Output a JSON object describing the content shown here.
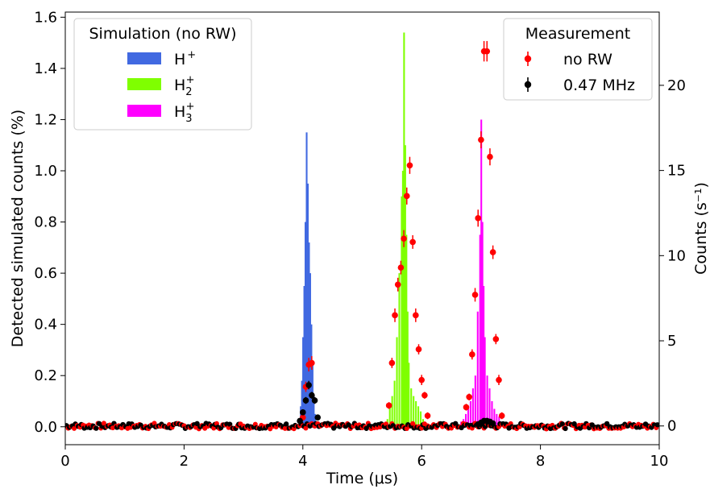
{
  "chart_data": {
    "type": "bar",
    "xlabel": "Time (μs)",
    "ylabel_left": "Detected simulated counts (%)",
    "ylabel_right": "Counts (s⁻¹)",
    "xlim": [
      0,
      10
    ],
    "ylim_left": [
      -0.07,
      1.62
    ],
    "ylim_right": [
      -1.1,
      24.3
    ],
    "x_ticks": [
      0,
      2,
      4,
      6,
      8,
      10
    ],
    "y_left_ticks": [
      0.0,
      0.2,
      0.4,
      0.6,
      0.8,
      1.0,
      1.2,
      1.4,
      1.6
    ],
    "y_right_ticks": [
      0,
      5,
      10,
      15,
      20
    ],
    "grid": false,
    "legends": [
      {
        "title": "Simulation (no RW)",
        "placement": "top-left",
        "entries": [
          {
            "label": "H",
            "sup": "+",
            "sub": "",
            "color": "#4169e1"
          },
          {
            "label": "H",
            "sup": "+",
            "sub": "2",
            "color": "#7fff00"
          },
          {
            "label": "H",
            "sup": "+",
            "sub": "3",
            "color": "#ff00ff"
          }
        ]
      },
      {
        "title": "Measurement",
        "placement": "top-right",
        "entries": [
          {
            "label": "no RW",
            "color": "#ff0000"
          },
          {
            "label": "0.47 MHz",
            "color": "#000000"
          }
        ]
      }
    ],
    "simulation_series": [
      {
        "name": "H+",
        "color": "#4169e1",
        "x": [
          3.92,
          3.94,
          3.96,
          3.98,
          4.0,
          4.02,
          4.04,
          4.06,
          4.08,
          4.1,
          4.12,
          4.14,
          4.16,
          4.18,
          4.2,
          4.22
        ],
        "values": [
          0.01,
          0.03,
          0.08,
          0.18,
          0.35,
          0.55,
          0.8,
          1.15,
          0.95,
          0.72,
          0.6,
          0.4,
          0.25,
          0.12,
          0.05,
          0.02
        ]
      },
      {
        "name": "H2+",
        "color": "#7fff00",
        "x": [
          5.42,
          5.46,
          5.5,
          5.54,
          5.58,
          5.62,
          5.66,
          5.68,
          5.7,
          5.72,
          5.74,
          5.76,
          5.78,
          5.82,
          5.86,
          5.9,
          5.94,
          5.98,
          6.02
        ],
        "values": [
          0.03,
          0.08,
          0.12,
          0.18,
          0.35,
          0.6,
          0.9,
          1.0,
          1.54,
          1.1,
          0.75,
          0.45,
          0.25,
          0.15,
          0.12,
          0.1,
          0.08,
          0.06,
          0.03
        ]
      },
      {
        "name": "H3+",
        "color": "#ff00ff",
        "x": [
          6.66,
          6.7,
          6.74,
          6.78,
          6.82,
          6.86,
          6.9,
          6.94,
          6.98,
          7.0,
          7.02,
          7.04,
          7.06,
          7.1,
          7.14,
          7.18,
          7.22,
          7.26,
          7.3,
          7.34
        ],
        "values": [
          0.02,
          0.03,
          0.05,
          0.08,
          0.1,
          0.15,
          0.2,
          0.45,
          0.75,
          1.2,
          0.8,
          0.55,
          0.35,
          0.2,
          0.15,
          0.1,
          0.07,
          0.05,
          0.04,
          0.02
        ]
      }
    ],
    "measurement_series": [
      {
        "name": "no RW",
        "color": "#ff0000",
        "x": [
          4.0,
          4.05,
          4.1,
          4.15,
          5.45,
          5.5,
          5.55,
          5.6,
          5.65,
          5.7,
          5.75,
          5.8,
          5.85,
          5.9,
          5.95,
          6.0,
          6.05,
          6.1,
          6.75,
          6.8,
          6.85,
          6.9,
          6.95,
          7.0,
          7.05,
          7.1,
          7.15,
          7.2,
          7.25,
          7.3,
          7.35
        ],
        "y": [
          0.5,
          2.3,
          3.6,
          3.7,
          1.2,
          3.7,
          6.5,
          8.3,
          9.3,
          11.0,
          13.5,
          15.3,
          10.8,
          6.5,
          4.5,
          2.7,
          1.8,
          0.6,
          1.1,
          1.7,
          4.2,
          7.7,
          12.2,
          16.8,
          22.0,
          22.0,
          15.8,
          10.2,
          5.1,
          2.7,
          0.6
        ],
        "yerr": [
          0.2,
          0.3,
          0.4,
          0.4,
          0.2,
          0.3,
          0.4,
          0.4,
          0.4,
          0.5,
          0.5,
          0.5,
          0.4,
          0.4,
          0.3,
          0.3,
          0.2,
          0.2,
          0.2,
          0.2,
          0.3,
          0.4,
          0.5,
          0.5,
          0.6,
          0.6,
          0.5,
          0.4,
          0.3,
          0.3,
          0.2
        ]
      },
      {
        "name": "0.47 MHz",
        "color": "#000000",
        "x": [
          3.95,
          4.0,
          4.05,
          4.1,
          4.15,
          4.2,
          4.25,
          6.95,
          7.0,
          7.05,
          7.1,
          7.15,
          7.2
        ],
        "y": [
          0.3,
          0.8,
          1.5,
          2.4,
          1.8,
          1.5,
          0.5,
          0.1,
          0.2,
          0.3,
          0.3,
          0.25,
          0.15
        ],
        "yerr": [
          0.1,
          0.15,
          0.2,
          0.25,
          0.2,
          0.2,
          0.1,
          0.08,
          0.08,
          0.1,
          0.1,
          0.08,
          0.08
        ]
      }
    ]
  }
}
